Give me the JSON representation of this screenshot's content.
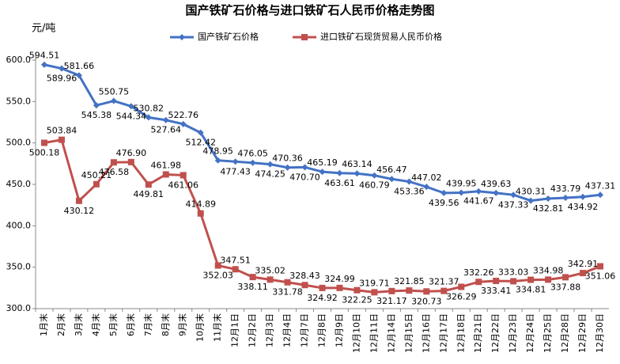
{
  "chart_data": {
    "type": "line",
    "title": "国产铁矿石价格与进口铁矿石人民币价格走势图",
    "y_label": "元/吨",
    "categories": [
      "1月末",
      "2月末",
      "3月末",
      "4月末",
      "5月末",
      "6月末",
      "7月末",
      "8月末",
      "9月末",
      "10月末",
      "11月末",
      "12月1日",
      "12月2日",
      "12月3日",
      "12月4日",
      "12月7日",
      "12月8日",
      "12月9日",
      "12月10日",
      "12月11日",
      "12月14日",
      "12月15日",
      "12月16日",
      "12月17日",
      "12月18日",
      "12月21日",
      "12月22日",
      "12月23日",
      "12月24日",
      "12月25日",
      "12月28日",
      "12月29日",
      "12月30日"
    ],
    "series": [
      {
        "name": "国产铁矿石价格",
        "color": "#4472c4",
        "marker": "diamond",
        "values": [
          594.51,
          589.96,
          581.66,
          545.38,
          550.75,
          544.34,
          530.82,
          527.64,
          522.76,
          512.42,
          478.95,
          477.43,
          476.05,
          474.25,
          470.36,
          470.7,
          465.19,
          463.61,
          463.14,
          460.79,
          456.47,
          453.36,
          447.02,
          439.56,
          439.95,
          441.67,
          439.63,
          437.33,
          430.31,
          432.81,
          433.79,
          434.92,
          437.31
        ],
        "value_labels": [
          "594.51",
          "589.96",
          "581.66",
          "545.38",
          "550.75",
          "544.34",
          "530.82",
          "527.64",
          "522.76",
          "512.42",
          "478.95",
          "477.43",
          "476.05",
          "474.25",
          "470.36",
          "470.70",
          "465.19",
          "463.61",
          "463.14",
          "460.79",
          "456.47",
          "453.36",
          "447.02",
          "439.56",
          "439.95",
          "441.67",
          "439.63",
          "437.33",
          "430.31",
          "432.81",
          "433.79",
          "434.92",
          "437.31"
        ]
      },
      {
        "name": "进口铁矿石现货贸易人民币价格",
        "color": "#c0504d",
        "marker": "square",
        "values": [
          500.18,
          503.84,
          430.12,
          450.21,
          476.58,
          476.9,
          449.81,
          461.98,
          461.06,
          414.89,
          352.03,
          347.51,
          338.11,
          335.02,
          331.78,
          328.43,
          324.92,
          324.99,
          322.25,
          319.71,
          321.17,
          321.85,
          320.73,
          321.37,
          326.29,
          332.26,
          333.41,
          333.03,
          334.81,
          334.98,
          337.88,
          342.91,
          351.06
        ],
        "value_labels": [
          "500.18",
          "503.84",
          "430.12",
          "450.21",
          "476.58",
          "476.90",
          "449.81",
          "461.98",
          "461.06",
          "414.89",
          "352.03",
          "347.51",
          "338.11",
          "335.02",
          "331.78",
          "328.43",
          "324.92",
          "324.99",
          "322.25",
          "319.71",
          "321.17",
          "321.85",
          "320.73",
          "321.37",
          "326.29",
          "332.26",
          "333.41",
          "333.03",
          "334.81",
          "334.98",
          "337.88",
          "342.91",
          "351.06"
        ]
      }
    ],
    "ylim": [
      300,
      600
    ],
    "yticks": [
      {
        "value": 300,
        "label": "300.0"
      },
      {
        "value": 350,
        "label": "350.0"
      },
      {
        "value": 400,
        "label": "400.0"
      },
      {
        "value": 450,
        "label": "450.0"
      },
      {
        "value": 500,
        "label": "500.0"
      },
      {
        "value": 550,
        "label": "550.0"
      },
      {
        "value": 600,
        "label": "600.0"
      }
    ],
    "legend": "top"
  }
}
